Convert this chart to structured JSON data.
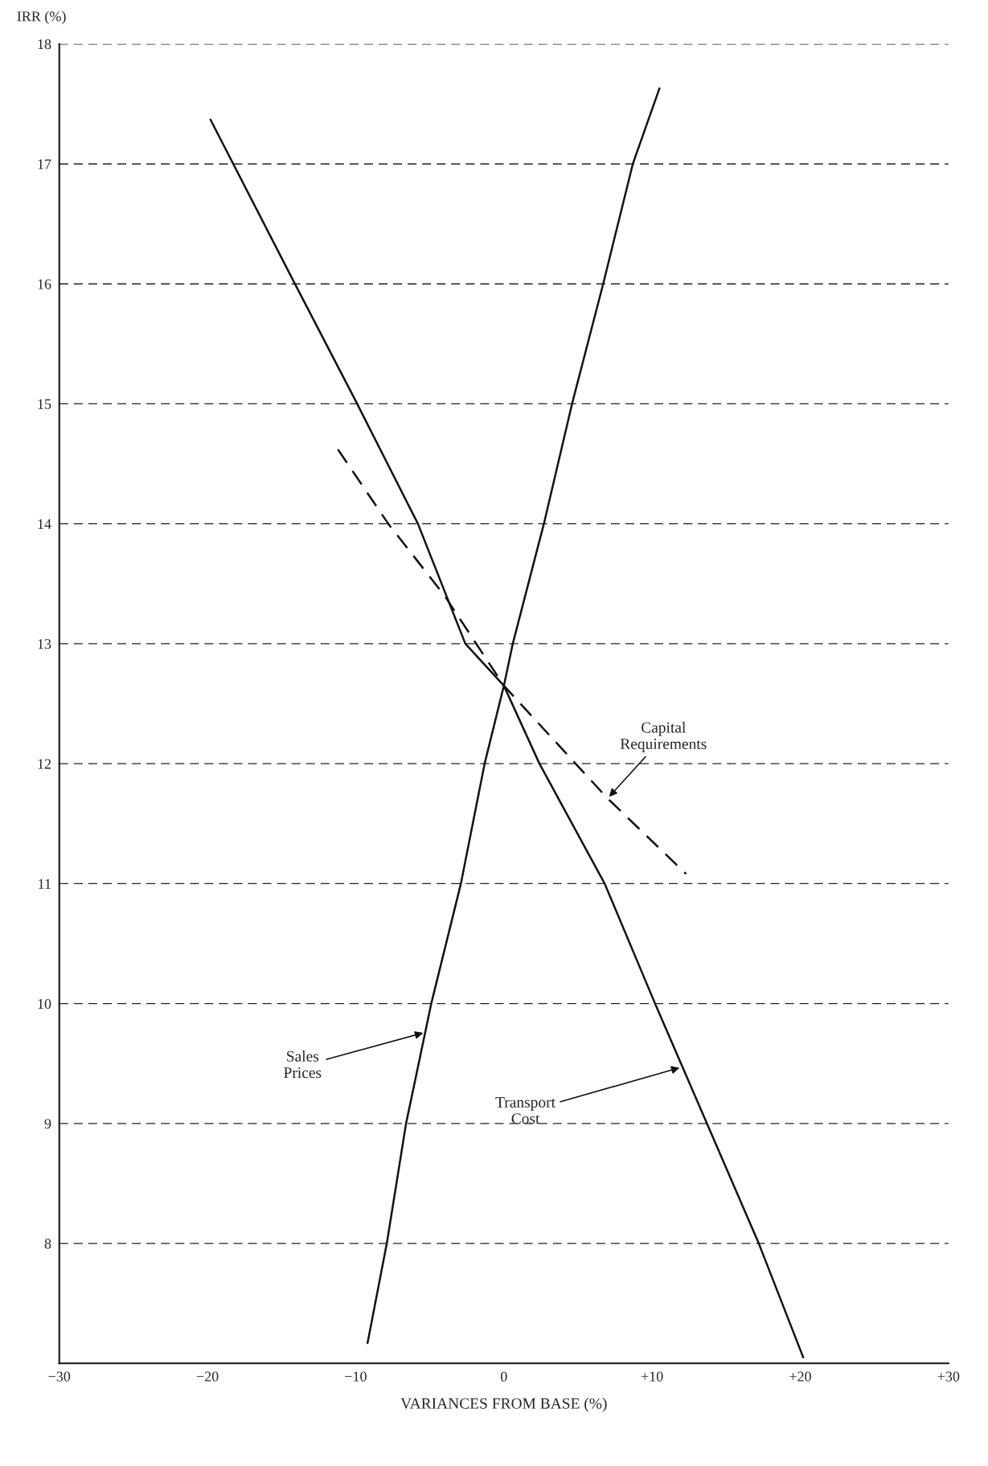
{
  "chart_data": {
    "type": "line",
    "xlabel": "VARIANCES FROM BASE (%)",
    "ylabel": "IRR (%)",
    "xlim": [
      -30,
      30
    ],
    "ylim": [
      7,
      18
    ],
    "xticks": [
      {
        "value": -30,
        "label": "−30"
      },
      {
        "value": -20,
        "label": "−20"
      },
      {
        "value": -10,
        "label": "−10"
      },
      0,
      {
        "value": 10,
        "label": "+10"
      },
      {
        "value": 20,
        "label": "+20"
      },
      {
        "value": 30,
        "label": "+30"
      }
    ],
    "yticks": [
      8,
      9,
      10,
      11,
      12,
      13,
      14,
      15,
      16,
      17,
      18
    ],
    "grid": "y",
    "marker": "none",
    "legend": false,
    "series": [
      {
        "color": "#111111",
        "line_style": "solid",
        "x": [
          -19.8,
          -14.1,
          -9.9,
          -5.8,
          -2.6,
          0,
          2.4,
          6.8,
          10.2,
          13.7,
          17.2,
          20.2
        ],
        "values": [
          17.37,
          16,
          15,
          14,
          13,
          12.65,
          12,
          11,
          10,
          9,
          8,
          7.05
        ]
      },
      {
        "color": "#111111",
        "line_style": "solid",
        "x": [
          -9.2,
          -7.9,
          -6.6,
          -4.9,
          -2.9,
          -1.3,
          0,
          0.6,
          2.7,
          4.6,
          6.7,
          8.7,
          10.5
        ],
        "values": [
          7.17,
          8,
          9,
          10,
          11,
          12,
          12.65,
          13,
          14,
          15,
          16,
          17,
          17.63
        ]
      },
      {
        "color": "#111111",
        "line_style": "dashed",
        "x": [
          -11.2,
          -7.8,
          -4,
          0,
          7,
          12.3
        ],
        "values": [
          14.62,
          14,
          13.4,
          12.65,
          11.71,
          11.08
        ]
      }
    ],
    "annotations": [
      {
        "text": "Capital\nRequirements",
        "x": 7,
        "y": 11.71
      },
      {
        "text": "Sales\nPrices",
        "x": -5.3,
        "y": 9.76
      },
      {
        "text": "Transport\nCost",
        "x": 12,
        "y": 9.47
      }
    ]
  }
}
